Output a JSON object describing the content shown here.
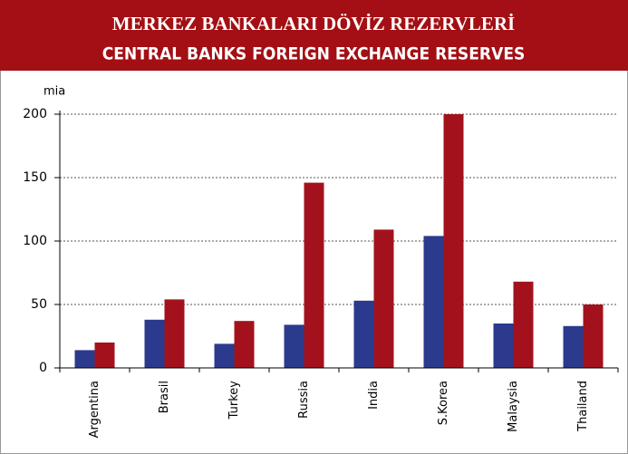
{
  "chart_data": {
    "type": "bar",
    "title": "MERKEZ BANKALARI DÖVİZ REZERVLERİ",
    "subtitle": "CENTRAL BANKS FOREIGN EXCHANGE RESERVES",
    "ylabel": "mia",
    "categories": [
      "Argentina",
      "Brasil",
      "Turkey",
      "Russia",
      "India",
      "S.Korea",
      "Malaysia",
      "Thailand"
    ],
    "series": [
      {
        "color": "#2b3a8c",
        "values": [
          14,
          38,
          19,
          34,
          53,
          104,
          35,
          33
        ]
      },
      {
        "color": "#a3121c",
        "values": [
          20,
          54,
          37,
          146,
          109,
          200,
          68,
          50
        ]
      }
    ],
    "ylim": [
      0,
      200
    ],
    "yticks": [
      0,
      50,
      100,
      150,
      200
    ],
    "grid": true
  }
}
